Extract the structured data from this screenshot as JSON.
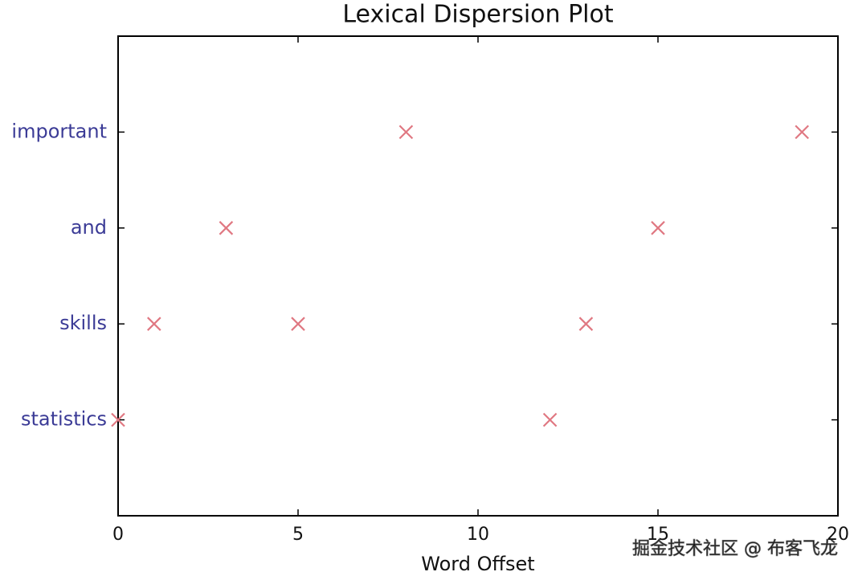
{
  "chart_data": {
    "type": "scatter",
    "title": "Lexical Dispersion Plot",
    "xlabel": "Word Offset",
    "categories": [
      "statistics",
      "skills",
      "and",
      "important"
    ],
    "series": [
      {
        "color": "#e07882",
        "x": [
          0,
          12,
          1,
          5,
          13,
          3,
          15,
          8,
          19
        ],
        "y": [
          "statistics",
          "statistics",
          "skills",
          "skills",
          "skills",
          "and",
          "and",
          "important",
          "important"
        ]
      }
    ],
    "xlim": [
      0,
      20
    ],
    "xticks": [
      0,
      5,
      10,
      15,
      20
    ],
    "category_color": "#3b3b96",
    "watermark": "掘金技术社区 @ 布客飞龙"
  }
}
